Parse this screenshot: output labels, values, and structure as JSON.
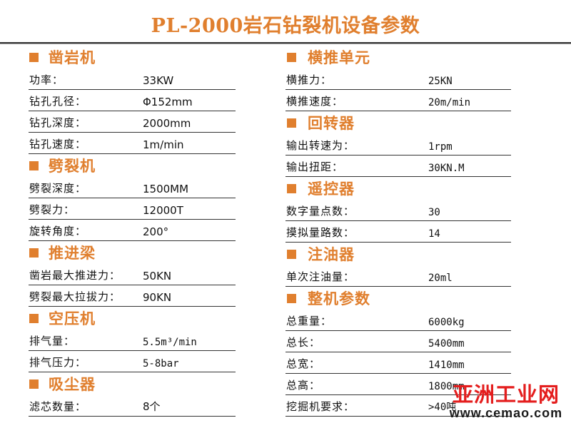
{
  "title": "PL-2000岩石钻裂机设备参数",
  "accent_color": "#e07f2e",
  "left_sections": [
    {
      "heading": "凿岩机",
      "rows": [
        {
          "label": "功率：",
          "value": "33KW"
        },
        {
          "label": "钻孔孔径：",
          "value": "Φ152mm"
        },
        {
          "label": "钻孔深度：",
          "value": "2000mm"
        },
        {
          "label": "钻孔速度：",
          "value": "1m/min"
        }
      ]
    },
    {
      "heading": "劈裂机",
      "rows": [
        {
          "label": "劈裂深度：",
          "value": "1500MM"
        },
        {
          "label": "劈裂力：",
          "value": "12000T"
        },
        {
          "label": "旋转角度：",
          "value": "200°"
        }
      ]
    },
    {
      "heading": "推进梁",
      "rows": [
        {
          "label": "凿岩最大推进力：",
          "value": "50KN"
        },
        {
          "label": "劈裂最大拉拔力：",
          "value": "90KN"
        }
      ]
    },
    {
      "heading": "空压机",
      "rows": [
        {
          "label": "排气量：",
          "value": "5.5m³/min"
        },
        {
          "label": "排气压力：",
          "value": "5-8bar"
        }
      ]
    },
    {
      "heading": "吸尘器",
      "rows": [
        {
          "label": "滤芯数量：",
          "value": "8个"
        }
      ]
    }
  ],
  "right_sections": [
    {
      "heading": "横推单元",
      "rows": [
        {
          "label": "横推力：",
          "value": "25KN"
        },
        {
          "label": "横推速度：",
          "value": "20m/min"
        }
      ]
    },
    {
      "heading": "回转器",
      "rows": [
        {
          "label": "输出转速为：",
          "value": "1rpm"
        },
        {
          "label": "输出扭距：",
          "value": "30KN.M"
        }
      ]
    },
    {
      "heading": "遥控器",
      "rows": [
        {
          "label": "数字量点数：",
          "value": "30"
        },
        {
          "label": "摸拟量路数：",
          "value": "14"
        }
      ]
    },
    {
      "heading": "注油器",
      "rows": [
        {
          "label": "单次注油量：",
          "value": "20ml"
        }
      ]
    },
    {
      "heading": "整机参数",
      "rows": [
        {
          "label": "总重量：",
          "value": "6000kg"
        },
        {
          "label": "总长：",
          "value": "5400mm"
        },
        {
          "label": "总宽：",
          "value": "1410mm"
        },
        {
          "label": "总高：",
          "value": "1800mm"
        },
        {
          "label": "挖掘机要求：",
          "value": ">40吨"
        }
      ]
    }
  ],
  "watermark": {
    "name": "亚洲工业网",
    "url": "www.cemao.com"
  }
}
